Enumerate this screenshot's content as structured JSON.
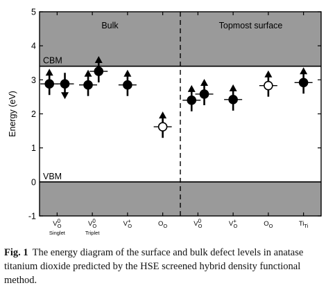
{
  "chart_data": {
    "type": "scatter",
    "ylabel": "Energy (eV)",
    "ylim": [
      -1,
      5
    ],
    "yticks": [
      -1,
      0,
      1,
      2,
      3,
      4,
      5
    ],
    "levels": {
      "CBM": 3.4,
      "VBM": 0.0
    },
    "band_fill_color": "#9a9a9a",
    "regions": [
      {
        "label": "Bulk"
      },
      {
        "label": "Topmost surface"
      }
    ],
    "categories": [
      {
        "base": "V",
        "sub": "O",
        "sup": "0",
        "note": "Singlet"
      },
      {
        "base": "V",
        "sub": "O",
        "sup": "0",
        "note": "Triplet"
      },
      {
        "base": "V",
        "sub": "O",
        "sup": "+",
        "note": ""
      },
      {
        "base": "O",
        "sub": "O",
        "sup": "",
        "note": ""
      },
      {
        "base": "V",
        "sub": "O",
        "sup": "0",
        "note": ""
      },
      {
        "base": "V",
        "sub": "O",
        "sup": "+",
        "note": ""
      },
      {
        "base": "O",
        "sub": "O",
        "sup": "",
        "note": ""
      },
      {
        "base": "Ti",
        "sub": "Ti",
        "sup": "",
        "note": ""
      }
    ],
    "points": [
      {
        "cat": 0,
        "dx": -0.22,
        "y": 2.88,
        "filled": true,
        "spin": "up"
      },
      {
        "cat": 0,
        "dx": 0.22,
        "y": 2.88,
        "filled": true,
        "spin": "down"
      },
      {
        "cat": 1,
        "dx": -0.12,
        "y": 2.85,
        "filled": true,
        "spin": "up"
      },
      {
        "cat": 1,
        "dx": 0.18,
        "y": 3.25,
        "filled": true,
        "spin": "up"
      },
      {
        "cat": 2,
        "dx": 0.0,
        "y": 2.85,
        "filled": true,
        "spin": "up"
      },
      {
        "cat": 3,
        "dx": 0.0,
        "y": 1.62,
        "filled": false,
        "spin": "up"
      },
      {
        "cat": 4,
        "dx": -0.18,
        "y": 2.4,
        "filled": true,
        "spin": "up"
      },
      {
        "cat": 4,
        "dx": 0.18,
        "y": 2.58,
        "filled": true,
        "spin": "up"
      },
      {
        "cat": 5,
        "dx": 0.0,
        "y": 2.42,
        "filled": true,
        "spin": "up"
      },
      {
        "cat": 6,
        "dx": 0.0,
        "y": 2.83,
        "filled": false,
        "spin": "up"
      },
      {
        "cat": 7,
        "dx": 0.0,
        "y": 2.92,
        "filled": true,
        "spin": "up"
      }
    ]
  },
  "caption": {
    "label": "Fig. 1",
    "text": "The energy diagram of the surface and bulk defect levels in anatase titanium dioxide predicted by the HSE screened hybrid density functional method."
  }
}
